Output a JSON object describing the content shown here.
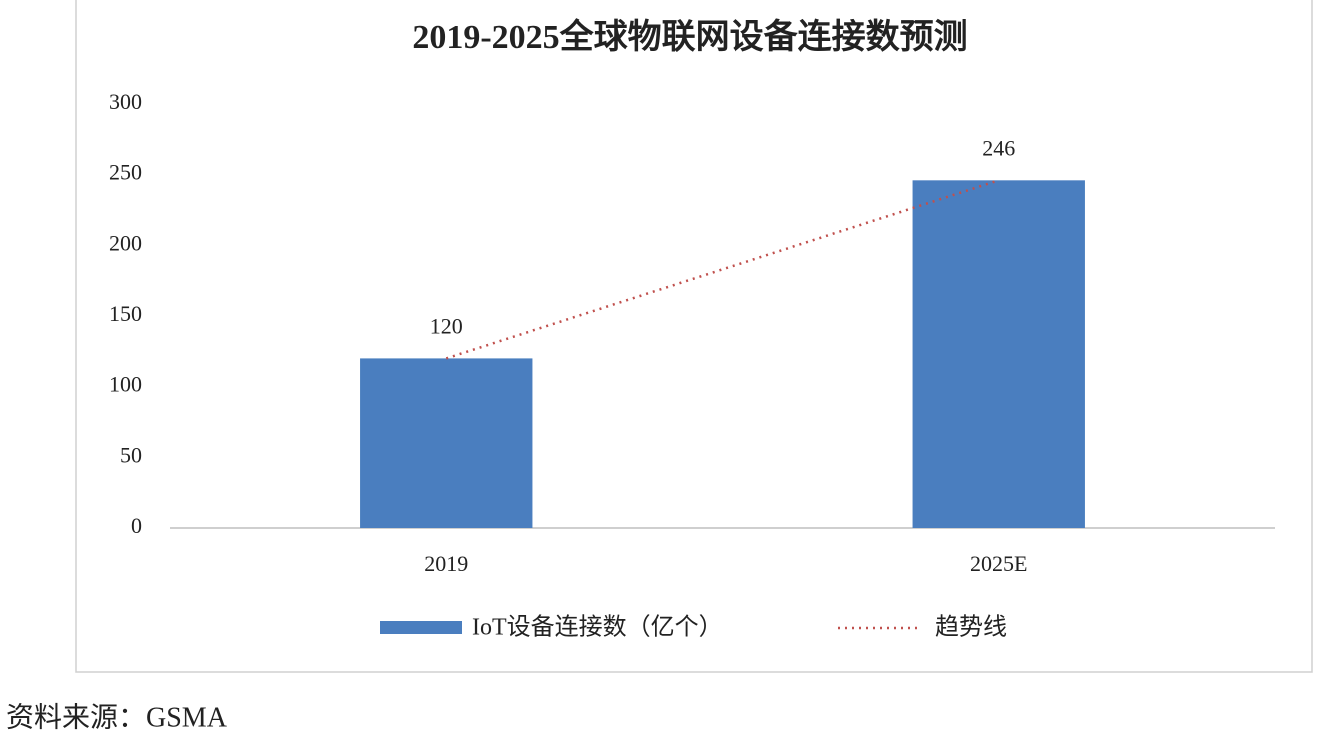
{
  "chart_data": {
    "type": "bar",
    "title": "2019-2025全球物联网设备连接数预测",
    "categories": [
      "2019",
      "2025E"
    ],
    "series": [
      {
        "name": "IoT设备连接数（亿个）",
        "color": "#4a7ebf",
        "values": [
          120,
          246
        ]
      }
    ],
    "trendline": {
      "name": "趋势线",
      "color": "#c0504d"
    },
    "ylim": [
      0,
      300
    ],
    "yticks": [
      0,
      50,
      100,
      150,
      200,
      250,
      300
    ],
    "source": "资料来源：GSMA"
  }
}
